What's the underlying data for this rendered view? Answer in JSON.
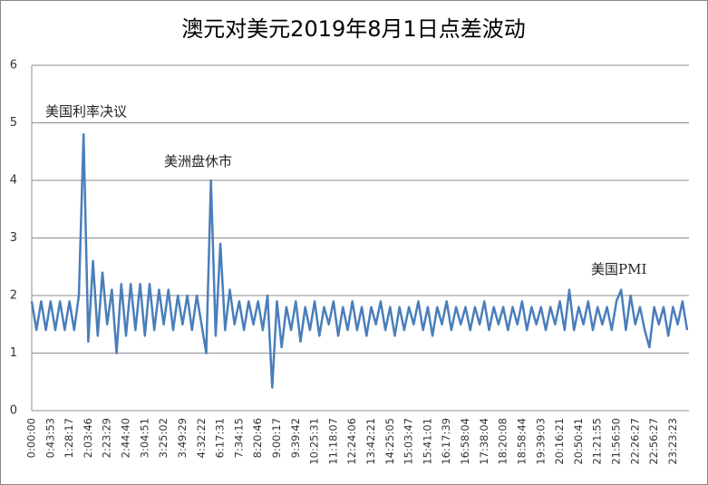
{
  "chart_data": {
    "type": "line",
    "title": "澳元对美元2019年8月1日点差波动",
    "categories": [
      "0:00:00",
      null,
      null,
      null,
      "0:43:53",
      null,
      null,
      null,
      "1:28:17",
      null,
      null,
      null,
      "2:03:46",
      null,
      null,
      null,
      "2:23:29",
      null,
      null,
      null,
      "2:44:40",
      null,
      null,
      null,
      "3:04:51",
      null,
      null,
      null,
      "3:25:02",
      null,
      null,
      null,
      "3:49:29",
      null,
      null,
      null,
      "4:32:22",
      null,
      null,
      null,
      "6:17:31",
      null,
      null,
      null,
      "7:34:15",
      null,
      null,
      null,
      "8:20:46",
      null,
      null,
      null,
      "9:00:17",
      null,
      null,
      null,
      "9:39:42",
      null,
      null,
      null,
      "10:25:31",
      null,
      null,
      null,
      "11:18:07",
      null,
      null,
      null,
      "12:24:06",
      null,
      null,
      null,
      "13:42:21",
      null,
      null,
      null,
      "14:25:05",
      null,
      null,
      null,
      "15:03:47",
      null,
      null,
      null,
      "15:41:01",
      null,
      null,
      null,
      "16:17:39",
      null,
      null,
      null,
      "16:58:04",
      null,
      null,
      null,
      "17:38:04",
      null,
      null,
      null,
      "18:20:08",
      null,
      null,
      null,
      "18:58:44",
      null,
      null,
      null,
      "19:39:03",
      null,
      null,
      null,
      "20:16:21",
      null,
      null,
      null,
      "20:50:41",
      null,
      null,
      null,
      "21:21:55",
      null,
      null,
      null,
      "21:56:50",
      null,
      null,
      null,
      "22:26:27",
      null,
      null,
      null,
      "22:56:27",
      null,
      null,
      null,
      "23:23:23",
      null,
      null,
      null
    ],
    "values": [
      1.9,
      1.4,
      1.9,
      1.4,
      1.9,
      1.4,
      1.9,
      1.4,
      1.9,
      1.4,
      2.0,
      4.8,
      1.2,
      2.6,
      1.3,
      2.4,
      1.5,
      2.1,
      1.0,
      2.2,
      1.3,
      2.2,
      1.4,
      2.2,
      1.3,
      2.2,
      1.4,
      2.1,
      1.5,
      2.1,
      1.4,
      2.0,
      1.5,
      2.0,
      1.4,
      2.0,
      1.5,
      1.0,
      4.0,
      1.3,
      2.9,
      1.4,
      2.1,
      1.5,
      1.9,
      1.4,
      1.9,
      1.5,
      1.9,
      1.4,
      2.0,
      0.4,
      1.9,
      1.1,
      1.8,
      1.4,
      1.9,
      1.2,
      1.8,
      1.4,
      1.9,
      1.3,
      1.8,
      1.5,
      1.9,
      1.3,
      1.8,
      1.4,
      1.9,
      1.4,
      1.8,
      1.3,
      1.8,
      1.5,
      1.9,
      1.4,
      1.8,
      1.3,
      1.8,
      1.4,
      1.8,
      1.5,
      1.9,
      1.4,
      1.8,
      1.3,
      1.8,
      1.5,
      1.9,
      1.4,
      1.8,
      1.5,
      1.8,
      1.4,
      1.8,
      1.5,
      1.9,
      1.4,
      1.8,
      1.5,
      1.8,
      1.4,
      1.8,
      1.5,
      1.9,
      1.4,
      1.8,
      1.5,
      1.8,
      1.4,
      1.8,
      1.5,
      1.9,
      1.4,
      2.1,
      1.4,
      1.8,
      1.5,
      1.9,
      1.4,
      1.8,
      1.5,
      1.8,
      1.4,
      1.9,
      2.1,
      1.4,
      2.0,
      1.5,
      1.8,
      1.4,
      1.1,
      1.8,
      1.5,
      1.8,
      1.3,
      1.8,
      1.5,
      1.9,
      1.4
    ],
    "color": "#4a7ebb",
    "ylim": [
      0,
      6
    ],
    "yticks": [
      0,
      1,
      2,
      3,
      4,
      5,
      6
    ],
    "grid": true,
    "annotations": [
      "美国利率决议",
      "美洲盘休市",
      "美国PMI"
    ]
  }
}
